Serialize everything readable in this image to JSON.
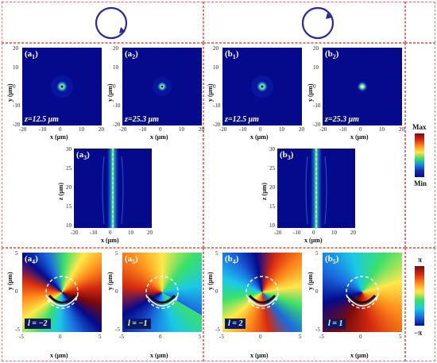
{
  "polarization": {
    "left": "clockwise",
    "right": "counter-clockwise"
  },
  "panels_top": [
    {
      "id": "a1",
      "tag_main": "(a",
      "tag_sub": "1",
      "tag_end": ")",
      "z": "z=12.5 μm"
    },
    {
      "id": "a2",
      "tag_main": "(a",
      "tag_sub": "2",
      "tag_end": ")",
      "z": "z=25.3 μm"
    },
    {
      "id": "b1",
      "tag_main": "(b",
      "tag_sub": "1",
      "tag_end": ")",
      "z": "z=12.5 μm"
    },
    {
      "id": "b2",
      "tag_main": "(b",
      "tag_sub": "2",
      "tag_end": ")",
      "z": "z=25.3 μm"
    }
  ],
  "panels_mid": [
    {
      "id": "a3",
      "tag_main": "(a",
      "tag_sub": "3",
      "tag_end": ")"
    },
    {
      "id": "b3",
      "tag_main": "(b",
      "tag_sub": "3",
      "tag_end": ")"
    }
  ],
  "panels_bottom": [
    {
      "id": "a4",
      "tag_main": "(a",
      "tag_sub": "4",
      "tag_end": ")",
      "l": "l = −2"
    },
    {
      "id": "a5",
      "tag_main": "(a",
      "tag_sub": "5",
      "tag_end": ")",
      "l": "l = −1"
    },
    {
      "id": "b4",
      "tag_main": "(b",
      "tag_sub": "4",
      "tag_end": ")",
      "l": "l = 2"
    },
    {
      "id": "b5",
      "tag_main": "(b",
      "tag_sub": "5",
      "tag_end": ")",
      "l": "l = 1"
    }
  ],
  "axes": {
    "xlabel": "x (μm)",
    "ylabel": "y (μm)",
    "zlabel": "z (μm)",
    "ticks_top": [
      "-20",
      "-10",
      "0",
      "10",
      "20"
    ],
    "ticks_mid_z": [
      "10",
      "15",
      "20",
      "25",
      "30"
    ],
    "ticks_bottom": [
      "-5",
      "0",
      "5"
    ]
  },
  "colorbar_intensity": {
    "max": "Max",
    "min": "Min"
  },
  "colorbar_phase": {
    "max": "π",
    "min": "−π"
  }
}
